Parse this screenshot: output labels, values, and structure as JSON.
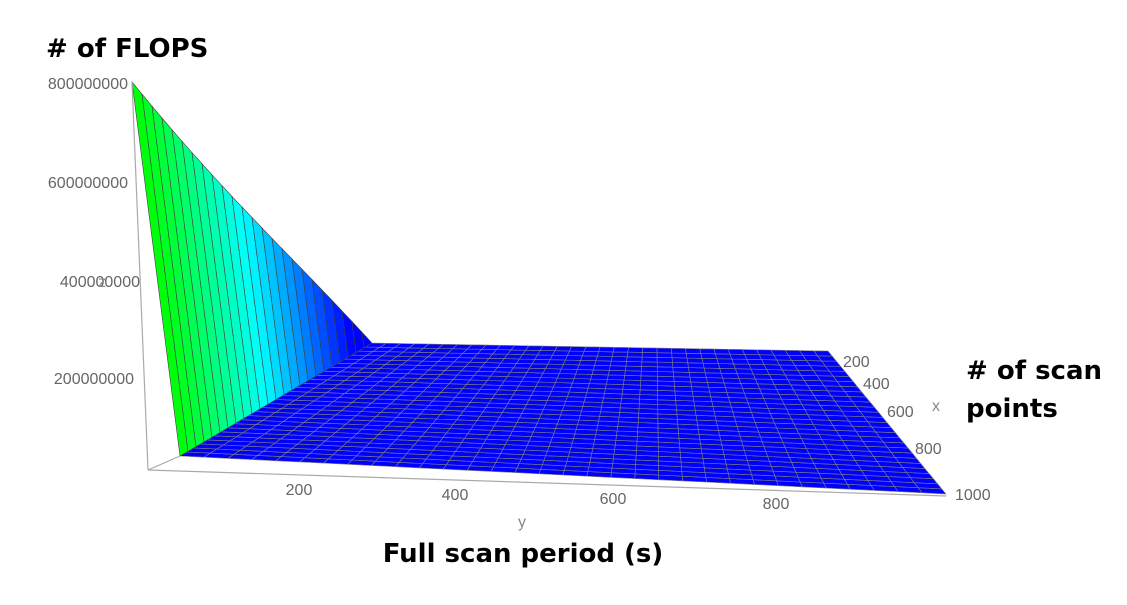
{
  "chart_data": {
    "type": "surface",
    "title": "",
    "captions": {
      "z": "# of FLOPS",
      "x_line1": "# of scan",
      "x_line2": "points",
      "y": "Full scan period (s)"
    },
    "axis_letters": {
      "x": "x",
      "y": "y",
      "z": "z"
    },
    "x_axis": {
      "ticks": [
        "200",
        "400",
        "600",
        "800",
        "1000"
      ],
      "range": [
        0,
        1000
      ]
    },
    "y_axis": {
      "ticks": [
        "200",
        "400",
        "600",
        "800"
      ],
      "range": [
        0,
        1000
      ]
    },
    "z_axis": {
      "ticks": [
        "200000000",
        "400000000",
        "600000000",
        "800000000"
      ],
      "range": [
        0,
        800000000
      ]
    },
    "surface": {
      "peak_z": 800000000,
      "grid": "x 40..1000, y 40..1000"
    },
    "colors": {
      "low": "#0000ff",
      "mid": "#00ffff",
      "high": "#00ff00",
      "grid": "#808080"
    }
  }
}
